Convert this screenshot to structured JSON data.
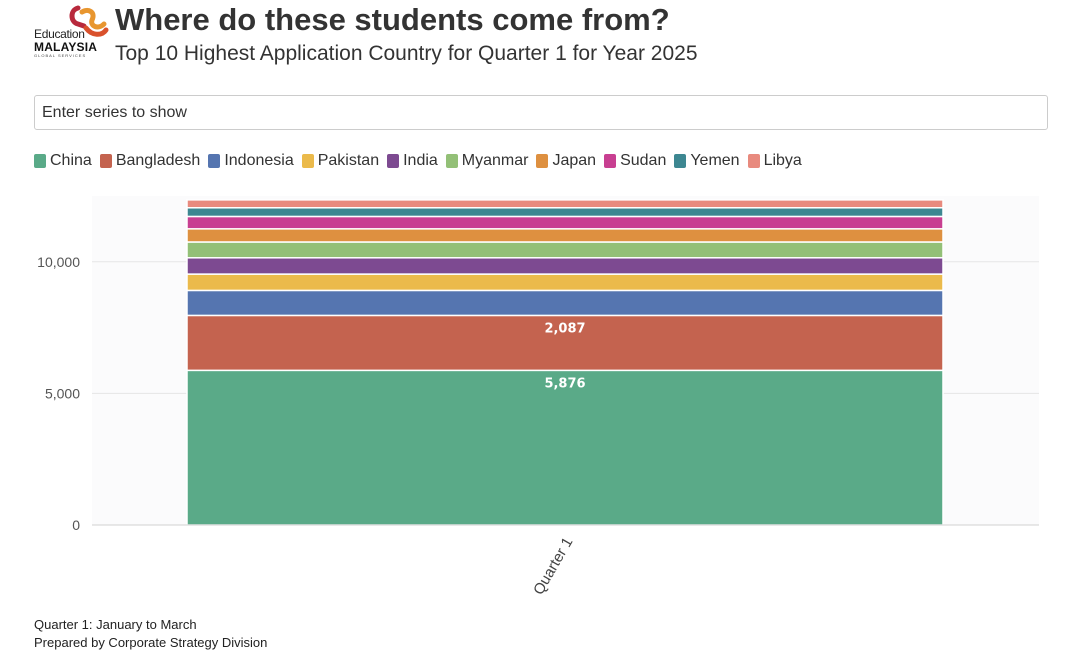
{
  "header": {
    "logo_line1": "Education",
    "logo_line2": "MALAYSIA",
    "logo_line3": "GLOBAL SERVICES",
    "title": "Where do these students come from?",
    "subtitle": "Top 10 Highest Application Country for Quarter 1 for Year 2025"
  },
  "search": {
    "placeholder": "Enter series to show"
  },
  "footer": {
    "line1": "Quarter 1: January to March",
    "line2": "Prepared by Corporate Strategy Division"
  },
  "chart_data": {
    "type": "bar",
    "stacked": true,
    "title": "Where do these students come from?",
    "subtitle": "Top 10 Highest Application Country for Quarter 1 for Year 2025",
    "xlabel": "",
    "ylabel": "",
    "categories": [
      "Quarter 1"
    ],
    "ylim": [
      0,
      12500
    ],
    "yticks": [
      0,
      5000,
      10000
    ],
    "ytick_labels": [
      "0",
      "5,000",
      "10,000"
    ],
    "grid": true,
    "legend_position": "top",
    "series": [
      {
        "name": "China",
        "values": [
          5876
        ],
        "color": "#5aaa88",
        "label": "5,876"
      },
      {
        "name": "Bangladesh",
        "values": [
          2087
        ],
        "color": "#c4634f",
        "label": "2,087"
      },
      {
        "name": "Indonesia",
        "values": [
          950
        ],
        "color": "#5575b0"
      },
      {
        "name": "Pakistan",
        "values": [
          620
        ],
        "color": "#ebba4b"
      },
      {
        "name": "India",
        "values": [
          620
        ],
        "color": "#7d4a91"
      },
      {
        "name": "Myanmar",
        "values": [
          600
        ],
        "color": "#93c077"
      },
      {
        "name": "Japan",
        "values": [
          500
        ],
        "color": "#de9040"
      },
      {
        "name": "Sudan",
        "values": [
          470
        ],
        "color": "#c83f91"
      },
      {
        "name": "Yemen",
        "values": [
          330
        ],
        "color": "#3d8791"
      },
      {
        "name": "Libya",
        "values": [
          300
        ],
        "color": "#e88a7e"
      }
    ]
  }
}
